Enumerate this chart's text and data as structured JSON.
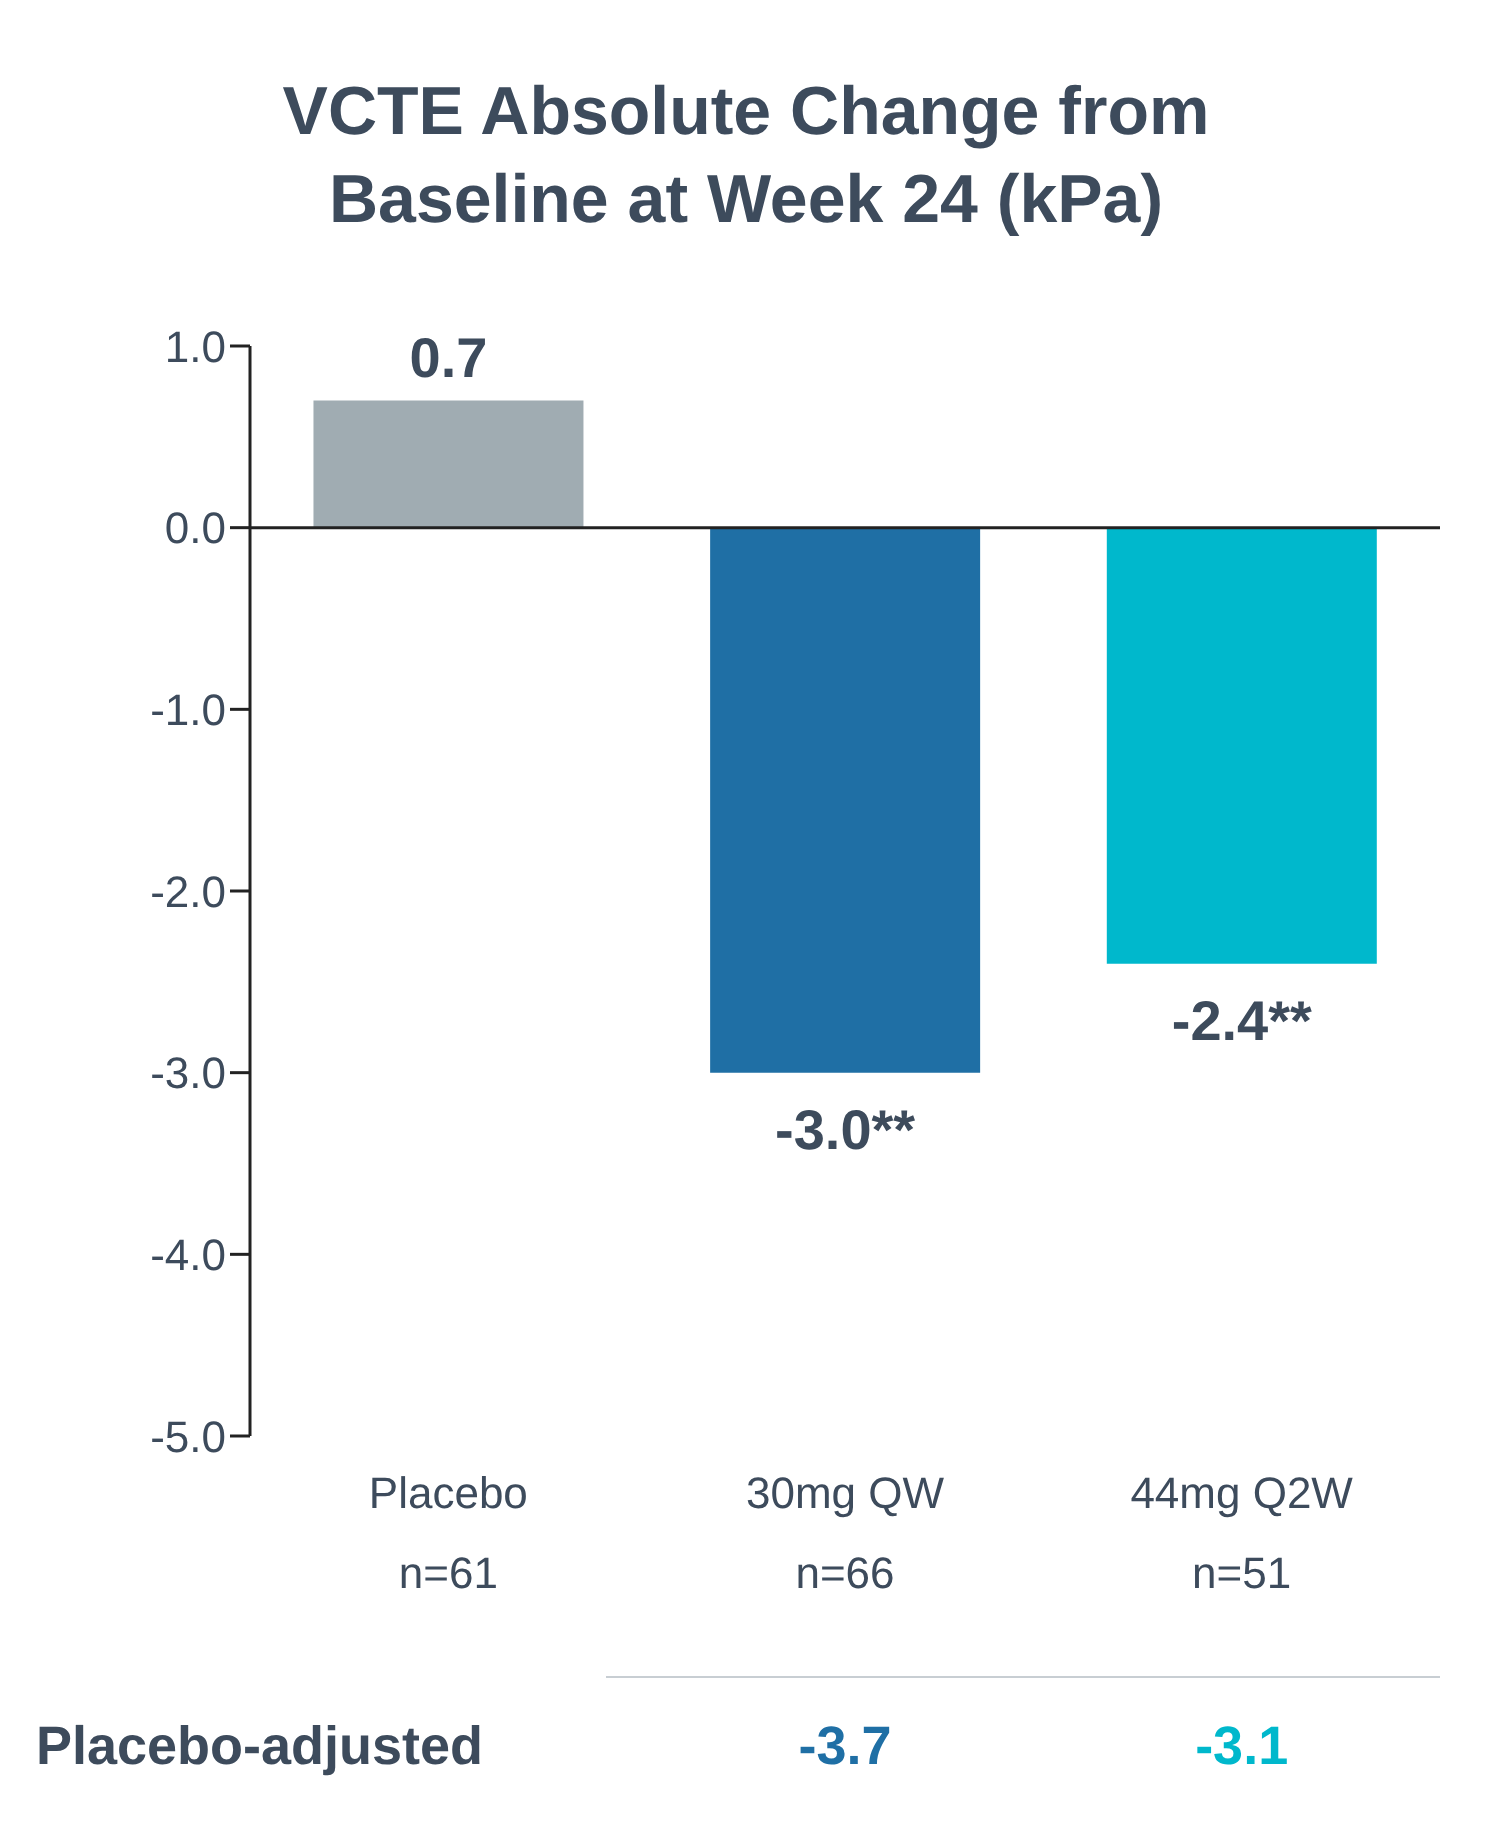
{
  "chart_data": {
    "type": "bar",
    "title": "VCTE Absolute Change from Baseline at Week 24 (kPa)",
    "categories": [
      "Placebo\nn=61",
      "30mg QW\nn=66",
      "44mg Q2W\nn=51"
    ],
    "values": [
      0.7,
      -3.0,
      -2.4
    ],
    "colors": [
      "#a0acb2",
      "#1f6fa5",
      "#00b8cc"
    ],
    "value_labels": [
      "0.7",
      "-3.0**",
      "-2.4**"
    ],
    "ylim": [
      -5,
      1
    ],
    "yticks": [
      {
        "value": 1,
        "label": "1.0"
      },
      {
        "value": 0,
        "label": "0.0"
      },
      {
        "value": -1,
        "label": "-1.0"
      },
      {
        "value": -2,
        "label": "-2.0"
      },
      {
        "value": -3,
        "label": "-3.0"
      },
      {
        "value": -4,
        "label": "-4.0"
      },
      {
        "value": -5,
        "label": "-5.0"
      }
    ],
    "annotations": [
      "Placebo-adjusted",
      "-3.7",
      "-3.1"
    ]
  }
}
